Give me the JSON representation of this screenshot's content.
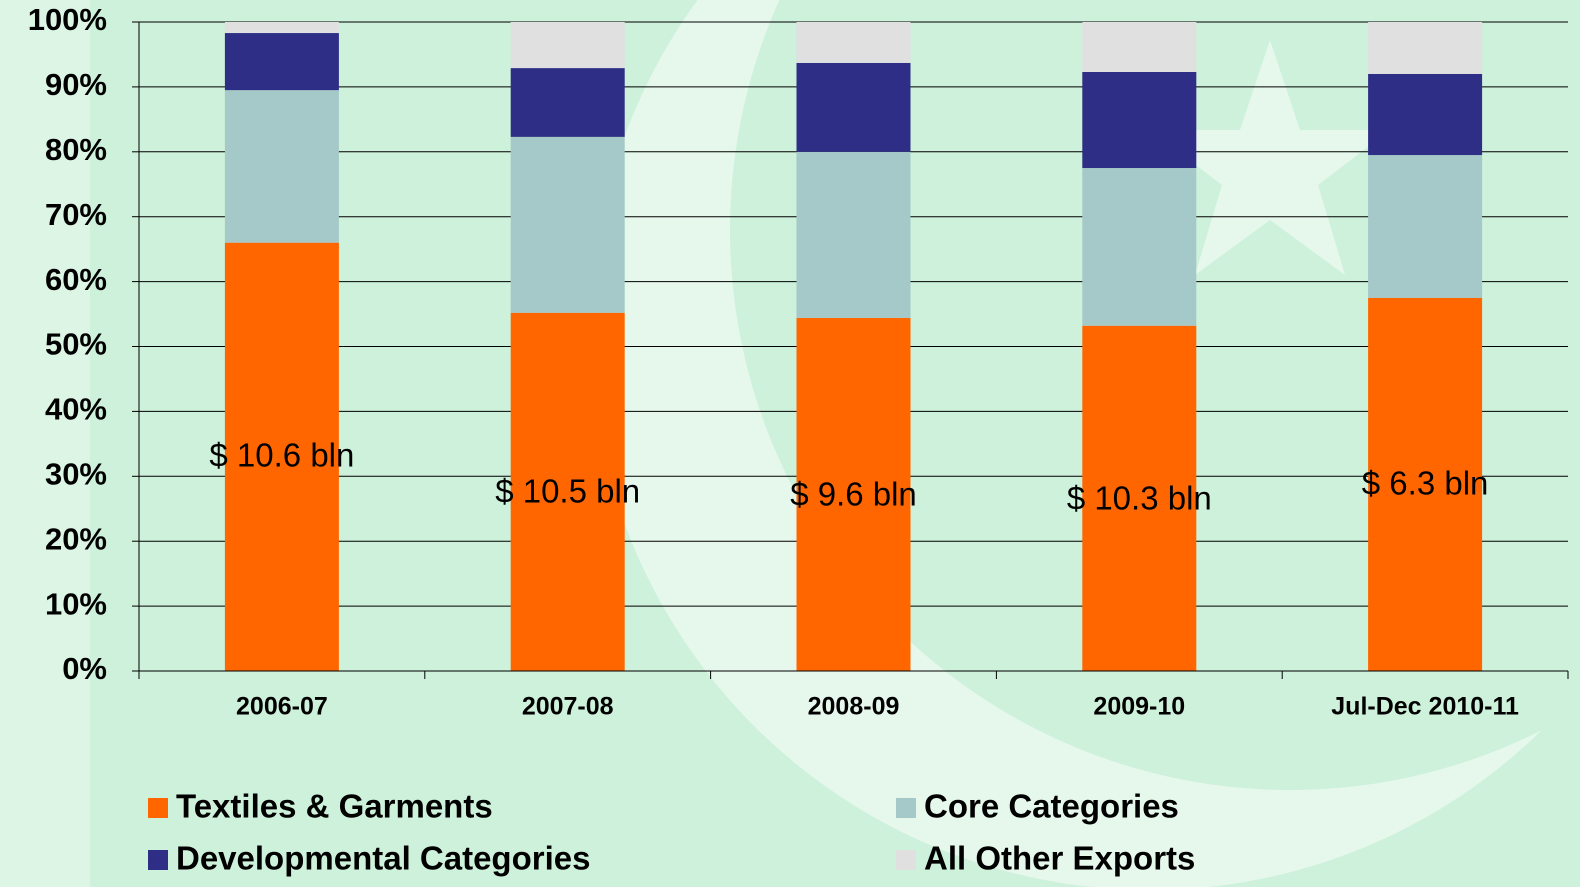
{
  "chart_data": {
    "type": "stacked_bar",
    "categories": [
      "2006-07",
      "2007-08",
      "2008-09",
      "2009-10",
      "Jul-Dec 2010-11"
    ],
    "series": [
      {
        "name": "Textiles & Garments",
        "color": "#ff6600",
        "values": [
          66,
          55.2,
          54.4,
          53.2,
          57.5
        ]
      },
      {
        "name": "Core Categories",
        "color": "#a5c8c8",
        "values": [
          23.5,
          27.1,
          25.6,
          24.3,
          22
        ]
      },
      {
        "name": "Developmental Categories",
        "color": "#2e2e86",
        "values": [
          8.8,
          10.6,
          13.7,
          14.8,
          12.5
        ]
      },
      {
        "name": "All Other Exports",
        "color": "#e0e0e0",
        "values": [
          1.7,
          7.1,
          6.3,
          7.7,
          8
        ]
      }
    ],
    "annotations": [
      "$ 10.6 bln",
      "$ 10.5 bln",
      "$ 9.6 bln",
      "$ 10.3 bln",
      "$ 6.3 bln"
    ],
    "ylim": [
      0,
      100
    ],
    "yticks": [
      {
        "value": 0,
        "label": "0%"
      },
      {
        "value": 10,
        "label": "10%"
      },
      {
        "value": 20,
        "label": "20%"
      },
      {
        "value": 30,
        "label": "30%"
      },
      {
        "value": 40,
        "label": "40%"
      },
      {
        "value": 50,
        "label": "50%"
      },
      {
        "value": 60,
        "label": "60%"
      },
      {
        "value": 70,
        "label": "70%"
      },
      {
        "value": 80,
        "label": "80%"
      },
      {
        "value": 90,
        "label": "90%"
      },
      {
        "value": 100,
        "label": "100%"
      }
    ],
    "grid": true
  }
}
